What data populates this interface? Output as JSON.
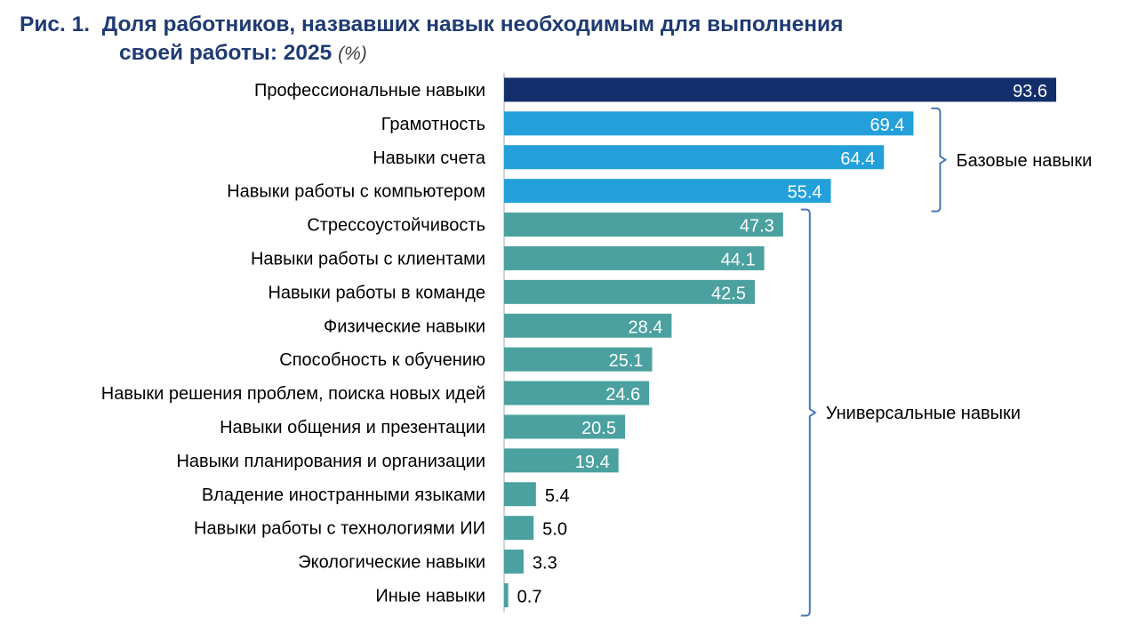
{
  "title": {
    "prefix": "Рис. 1.",
    "line1": "Доля работников, назвавших навык необходимым для выполнения",
    "line2": "своей работы:  2025",
    "unit": "(%)"
  },
  "chart_data": {
    "type": "bar",
    "orientation": "horizontal",
    "xlim": [
      0,
      100
    ],
    "grid": false,
    "categories": [
      "Профессиональные навыки",
      "Грамотность",
      "Навыки счета",
      "Навыки работы с компьютером",
      "Стрессоустойчивость",
      "Навыки работы с клиентами",
      "Навыки работы в команде",
      "Физические навыки",
      "Способность к обучению",
      "Навыки решения проблем, поиска новых идей",
      "Навыки общения и презентации",
      "Навыки планирования и организации",
      "Владение иностранными языками",
      "Навыки работы с технологиями ИИ",
      "Экологические навыки",
      "Иные навыки"
    ],
    "values": [
      93.6,
      69.4,
      64.4,
      55.4,
      47.3,
      44.1,
      42.5,
      28.4,
      25.1,
      24.6,
      20.5,
      19.4,
      5.4,
      5.0,
      3.3,
      0.7
    ],
    "value_labels": [
      "93.6",
      "69.4",
      "64.4",
      "55.4",
      "47.3",
      "44.1",
      "42.5",
      "28.4",
      "25.1",
      "24.6",
      "20.5",
      "19.4",
      "5.4",
      "5.0",
      "3.3",
      "0.7"
    ],
    "groups": [
      {
        "name": "Профессиональные навыки",
        "label": "",
        "from": 0,
        "to": 0,
        "color": "#132f6b"
      },
      {
        "name": "Базовые навыки",
        "label": "Базовые навыки",
        "from": 1,
        "to": 3,
        "color": "#23a0da"
      },
      {
        "name": "Универсальные навыки",
        "label": "Универсальные навыки",
        "from": 4,
        "to": 15,
        "color": "#4aa19f"
      }
    ],
    "axis_color": "#a6a6a6",
    "bracket_color": "#4a78b5"
  }
}
